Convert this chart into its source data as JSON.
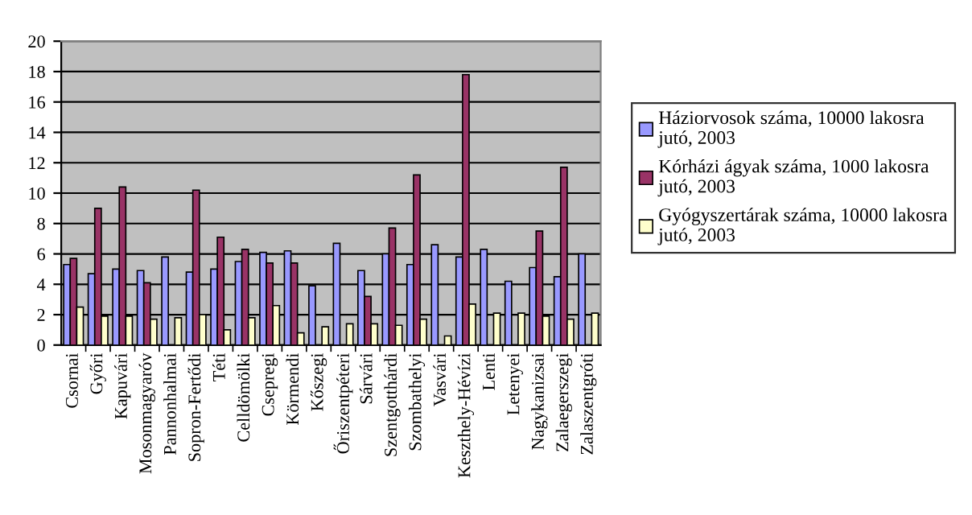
{
  "chart_data": {
    "type": "bar",
    "categories": [
      "Csornai",
      "Győri",
      "Kapuvári",
      "Mosonmagyaróv",
      "Pannonhalmai",
      "Sopron-Fertődi",
      "Téti",
      "Celldömölki",
      "Csepregi",
      "Körmendi",
      "Kőszegi",
      "Őriszentpéteri",
      "Sárvári",
      "Szentgotthárdi",
      "Szombathelyi",
      "Vasvári",
      "Keszthely-Hévízi",
      "Lenti",
      "Letenyei",
      "Nagykanizsai",
      "Zalaegerszegi",
      "Zalaszentgróti"
    ],
    "series": [
      {
        "name": "Háziorvosok száma, 10000 lakosra jutó, 2003",
        "color": "#9999ff",
        "values": [
          5.3,
          4.7,
          5.0,
          4.9,
          5.8,
          4.8,
          5.0,
          5.5,
          6.1,
          6.2,
          3.9,
          6.7,
          4.9,
          6.0,
          5.3,
          6.6,
          5.8,
          6.3,
          4.2,
          5.1,
          4.5,
          6.0
        ]
      },
      {
        "name": "Kórházi ágyak száma, 1000 lakosra jutó, 2003",
        "color": "#993366",
        "values": [
          5.7,
          9.0,
          10.4,
          4.1,
          null,
          10.2,
          7.1,
          6.3,
          5.4,
          5.4,
          null,
          null,
          3.2,
          7.7,
          11.2,
          null,
          17.8,
          null,
          null,
          7.5,
          11.7,
          null
        ]
      },
      {
        "name": "Gyógyszertárak száma, 10000 lakosra jutó, 2003",
        "color": "#ffffcc",
        "values": [
          2.5,
          1.9,
          1.9,
          1.7,
          1.8,
          2.0,
          1.0,
          1.8,
          2.6,
          0.8,
          1.2,
          1.4,
          1.4,
          1.3,
          1.7,
          0.6,
          2.7,
          2.1,
          2.1,
          1.9,
          1.7,
          2.1
        ]
      }
    ],
    "ylim": [
      0,
      20
    ],
    "yticks": [
      0,
      2,
      4,
      6,
      8,
      10,
      12,
      14,
      16,
      18,
      20
    ],
    "grid": "y",
    "legend": "right"
  }
}
